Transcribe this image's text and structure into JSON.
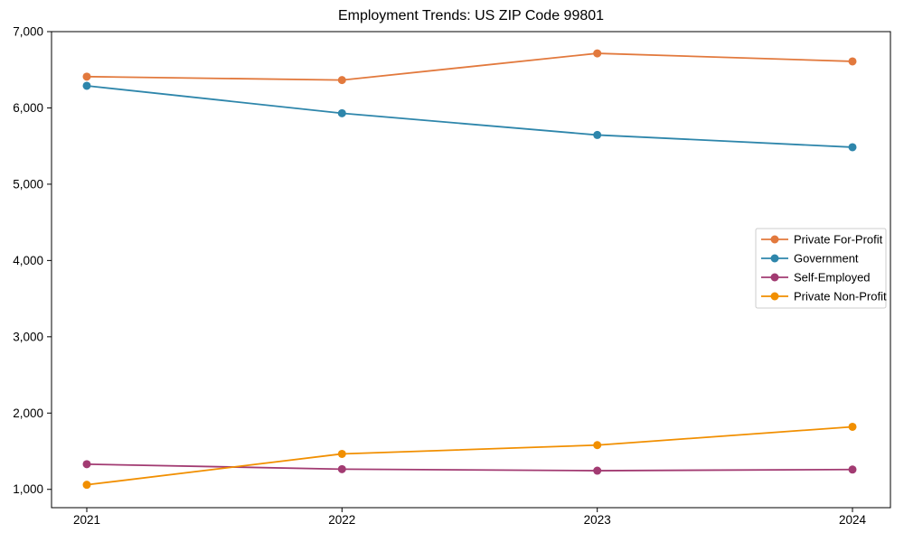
{
  "chart_data": {
    "type": "line",
    "title": "Employment Trends: US ZIP Code 99801",
    "categories": [
      "2021",
      "2022",
      "2023",
      "2024"
    ],
    "series": [
      {
        "name": "Private For-Profit",
        "color": "#E2793D",
        "values": [
          6410,
          6365,
          6715,
          6610
        ]
      },
      {
        "name": "Government",
        "color": "#2E86AB",
        "values": [
          6290,
          5930,
          5645,
          5485
        ]
      },
      {
        "name": "Self-Employed",
        "color": "#A23B72",
        "values": [
          1330,
          1265,
          1245,
          1260
        ]
      },
      {
        "name": "Private Non-Profit",
        "color": "#F18F01",
        "values": [
          1060,
          1465,
          1580,
          1820
        ]
      }
    ],
    "xlabel": "",
    "ylabel": "",
    "ylim": [
      760,
      7000
    ],
    "yticks": [
      1000,
      2000,
      3000,
      4000,
      5000,
      6000,
      7000
    ],
    "grid": false,
    "legend_position": "center right",
    "marker": "circle",
    "axis_color": "#000000",
    "tick_label_color": "#000000",
    "background": "#FFFFFF"
  }
}
